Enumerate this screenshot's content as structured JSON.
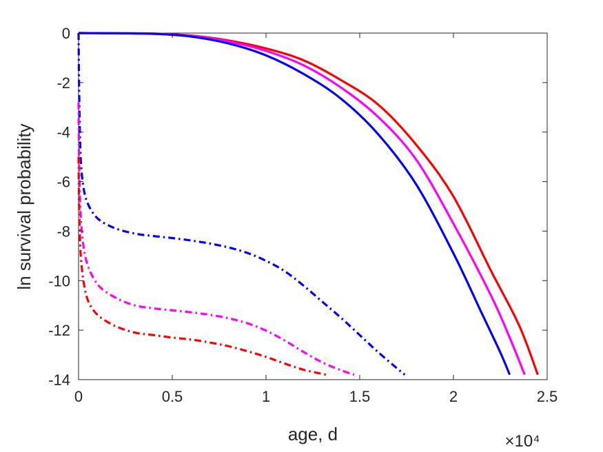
{
  "chart_data": {
    "type": "line",
    "title": "",
    "xlabel": "age, d",
    "ylabel": "ln survival probability",
    "x_exponent_label": "×10⁴",
    "xlim": [
      0,
      25000
    ],
    "ylim": [
      -14,
      0
    ],
    "xticks": [
      0,
      5000,
      10000,
      15000,
      20000,
      25000
    ],
    "xtick_labels": [
      "0",
      "0.5",
      "1",
      "1.5",
      "2",
      "2.5"
    ],
    "yticks": [
      0,
      -2,
      -4,
      -6,
      -8,
      -10,
      -12,
      -14
    ],
    "ytick_labels": [
      "0",
      "-2",
      "-4",
      "-6",
      "-8",
      "-10",
      "-12",
      "-14"
    ],
    "grid": false,
    "legend": "none",
    "series": [
      {
        "color": "#ff0000",
        "style": "solid",
        "x": [
          0,
          2000,
          4000,
          6000,
          8000,
          10000,
          12000,
          14000,
          16000,
          18000,
          20000,
          22000,
          23500,
          24500
        ],
        "y": [
          0,
          -0.01,
          -0.02,
          -0.1,
          -0.3,
          -0.62,
          -1.1,
          -1.9,
          -2.9,
          -4.5,
          -6.6,
          -9.6,
          -11.8,
          -13.8
        ]
      },
      {
        "color": "#ff00ff",
        "style": "solid",
        "x": [
          0,
          2000,
          4000,
          6000,
          8000,
          10000,
          12000,
          14000,
          16000,
          18000,
          20000,
          22000,
          23000,
          23800
        ],
        "y": [
          0,
          -0.01,
          -0.03,
          -0.11,
          -0.34,
          -0.72,
          -1.3,
          -2.2,
          -3.4,
          -5.1,
          -7.7,
          -10.6,
          -12.3,
          -13.8
        ]
      },
      {
        "color": "#0000ff",
        "style": "solid",
        "x": [
          0,
          2000,
          4000,
          6000,
          8000,
          10000,
          12000,
          14000,
          16000,
          18000,
          20000,
          21500,
          22500,
          23000
        ],
        "y": [
          0,
          -0.01,
          -0.03,
          -0.14,
          -0.42,
          -0.9,
          -1.65,
          -2.65,
          -4.1,
          -6.1,
          -8.9,
          -11.3,
          -12.9,
          -13.8
        ]
      },
      {
        "color": "#0000ff",
        "style": "dashdot",
        "x": [
          0,
          30,
          80,
          150,
          300,
          500,
          800,
          1200,
          2000,
          3000,
          4000,
          5000,
          6000,
          7000,
          8000,
          9000,
          10000,
          11000,
          12000,
          13000,
          14000,
          15000,
          16000,
          17000,
          17400
        ],
        "y": [
          0,
          -2.3,
          -4.3,
          -5.5,
          -6.4,
          -6.9,
          -7.3,
          -7.6,
          -7.9,
          -8.1,
          -8.2,
          -8.28,
          -8.38,
          -8.5,
          -8.66,
          -8.88,
          -9.2,
          -9.62,
          -10.2,
          -10.85,
          -11.5,
          -12.2,
          -12.9,
          -13.55,
          -13.8
        ]
      },
      {
        "color": "#ff00ff",
        "style": "dashdot",
        "x": [
          0,
          30,
          80,
          150,
          300,
          500,
          800,
          1200,
          2000,
          3000,
          4000,
          5000,
          6000,
          7000,
          8000,
          9000,
          10000,
          11000,
          12000,
          13000,
          14000,
          14700
        ],
        "y": [
          -2.8,
          -5.2,
          -6.8,
          -7.8,
          -8.8,
          -9.4,
          -9.9,
          -10.3,
          -10.7,
          -11.0,
          -11.12,
          -11.2,
          -11.28,
          -11.38,
          -11.52,
          -11.72,
          -12.02,
          -12.42,
          -12.88,
          -13.3,
          -13.62,
          -13.8
        ]
      },
      {
        "color": "#ff0000",
        "style": "dashdot",
        "x": [
          0,
          30,
          80,
          150,
          300,
          500,
          800,
          1200,
          2000,
          3000,
          4000,
          5000,
          6000,
          7000,
          8000,
          9000,
          10000,
          11000,
          12000,
          13200
        ],
        "y": [
          -5.0,
          -7.0,
          -8.4,
          -9.3,
          -10.2,
          -10.8,
          -11.2,
          -11.5,
          -11.85,
          -12.1,
          -12.2,
          -12.3,
          -12.38,
          -12.5,
          -12.65,
          -12.85,
          -13.08,
          -13.35,
          -13.6,
          -13.8
        ]
      }
    ]
  }
}
